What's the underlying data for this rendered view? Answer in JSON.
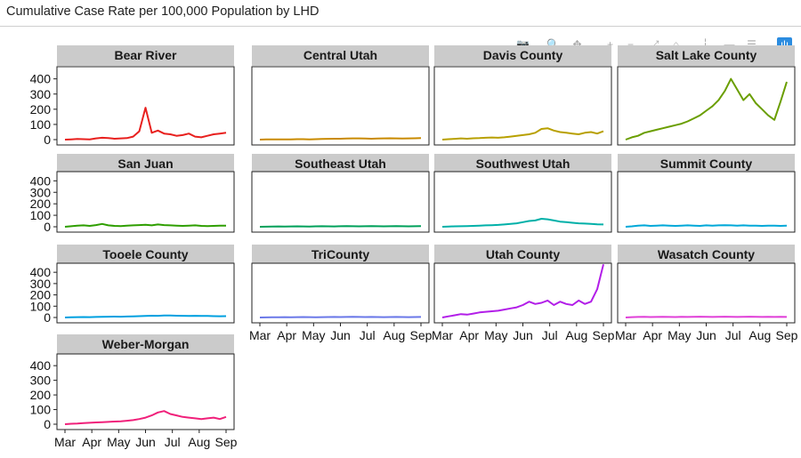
{
  "title": "Cumulative Case Rate per 100,000 Population by LHD",
  "toolbar": [
    {
      "name": "camera-icon",
      "glyph": "📷",
      "active": false
    },
    {
      "name": "zoom-icon",
      "glyph": "🔍",
      "active": false
    },
    {
      "name": "pan-icon",
      "glyph": "✥",
      "active": false
    },
    {
      "name": "zoom-in-icon",
      "glyph": "+",
      "active": false
    },
    {
      "name": "zoom-out-icon",
      "glyph": "−",
      "active": false
    },
    {
      "name": "autoscale-icon",
      "glyph": "⤢",
      "active": false
    },
    {
      "name": "reset-axes-icon",
      "glyph": "⌂",
      "active": false
    },
    {
      "name": "spike-lines-icon",
      "glyph": "┆",
      "active": false
    },
    {
      "name": "hover-closest-icon",
      "glyph": "▬",
      "active": false
    },
    {
      "name": "hover-compare-icon",
      "glyph": "☰",
      "active": false
    },
    {
      "name": "plotly-logo-icon",
      "glyph": "ılı",
      "active": true
    }
  ],
  "chart_data": {
    "type": "line",
    "title": "Cumulative Case Rate per 100,000 Population by LHD",
    "facet_layout": "4 columns",
    "ylim": [
      0,
      480
    ],
    "y_ticks": [
      "0",
      "100",
      "200",
      "300",
      "400"
    ],
    "x_ticks": [
      "Mar",
      "Apr",
      "May",
      "Jun",
      "Jul",
      "Aug",
      "Sep"
    ],
    "x_range": [
      "Mar",
      "Sep"
    ],
    "grid": false,
    "facets": [
      {
        "name": "Bear River",
        "color": "#e8201e",
        "values": [
          0,
          2,
          4,
          3,
          2,
          8,
          12,
          10,
          6,
          8,
          10,
          20,
          55,
          210,
          45,
          60,
          40,
          35,
          25,
          30,
          40,
          20,
          15,
          25,
          35,
          40,
          45
        ]
      },
      {
        "name": "Central Utah",
        "color": "#c98a00",
        "values": [
          0,
          1,
          1,
          2,
          1,
          2,
          3,
          3,
          2,
          3,
          4,
          5,
          6,
          6,
          7,
          8,
          8,
          7,
          6,
          7,
          8,
          9,
          8,
          7,
          8,
          9,
          10
        ]
      },
      {
        "name": "Davis County",
        "color": "#b8a000",
        "values": [
          0,
          3,
          5,
          8,
          6,
          9,
          10,
          12,
          14,
          12,
          15,
          20,
          25,
          30,
          35,
          45,
          70,
          75,
          60,
          50,
          45,
          40,
          35,
          45,
          50,
          40,
          55
        ]
      },
      {
        "name": "Salt Lake County",
        "color": "#6a9e00",
        "values": [
          0,
          15,
          25,
          45,
          55,
          65,
          75,
          85,
          95,
          105,
          120,
          140,
          160,
          190,
          220,
          260,
          320,
          400,
          330,
          260,
          300,
          240,
          200,
          160,
          130,
          250,
          380
        ]
      },
      {
        "name": "San Juan",
        "color": "#2e9e00",
        "values": [
          0,
          5,
          10,
          12,
          8,
          15,
          25,
          12,
          8,
          6,
          10,
          12,
          15,
          18,
          12,
          20,
          15,
          12,
          10,
          8,
          10,
          12,
          8,
          6,
          8,
          10,
          9
        ]
      },
      {
        "name": "Southeast Utah",
        "color": "#00a05a",
        "values": [
          0,
          1,
          2,
          3,
          2,
          3,
          4,
          3,
          2,
          4,
          5,
          4,
          3,
          5,
          6,
          5,
          4,
          5,
          6,
          5,
          4,
          5,
          6,
          5,
          4,
          5,
          6
        ]
      },
      {
        "name": "Southwest Utah",
        "color": "#00b0a8",
        "values": [
          0,
          2,
          4,
          5,
          6,
          8,
          10,
          12,
          14,
          16,
          20,
          25,
          30,
          40,
          50,
          55,
          70,
          65,
          55,
          45,
          40,
          35,
          30,
          28,
          25,
          22,
          20
        ]
      },
      {
        "name": "Summit County",
        "color": "#00a8d8",
        "values": [
          0,
          4,
          10,
          12,
          8,
          10,
          12,
          10,
          8,
          10,
          12,
          10,
          8,
          12,
          10,
          12,
          14,
          12,
          10,
          12,
          10,
          9,
          8,
          10,
          9,
          8,
          9
        ]
      },
      {
        "name": "Tooele County",
        "color": "#00a0e0",
        "values": [
          0,
          2,
          3,
          4,
          3,
          5,
          6,
          7,
          8,
          7,
          9,
          10,
          12,
          14,
          16,
          15,
          18,
          17,
          16,
          15,
          14,
          15,
          14,
          13,
          12,
          11,
          12
        ]
      },
      {
        "name": "TriCounty",
        "color": "#6a78e8",
        "values": [
          0,
          1,
          2,
          2,
          3,
          2,
          3,
          4,
          3,
          2,
          3,
          4,
          5,
          4,
          5,
          6,
          5,
          4,
          5,
          4,
          3,
          4,
          5,
          4,
          3,
          4,
          5
        ]
      },
      {
        "name": "Utah County",
        "color": "#b21ee8",
        "values": [
          0,
          10,
          20,
          30,
          25,
          35,
          45,
          50,
          55,
          60,
          70,
          80,
          90,
          110,
          140,
          120,
          130,
          150,
          110,
          140,
          120,
          110,
          150,
          120,
          140,
          250,
          470
        ]
      },
      {
        "name": "Wasatch County",
        "color": "#e040d8",
        "values": [
          0,
          3,
          5,
          6,
          4,
          5,
          6,
          5,
          4,
          6,
          5,
          6,
          7,
          6,
          5,
          6,
          7,
          6,
          5,
          6,
          7,
          6,
          5,
          6,
          5,
          6,
          5
        ]
      },
      {
        "name": "Weber-Morgan",
        "color": "#f0207a",
        "values": [
          0,
          3,
          5,
          8,
          10,
          12,
          14,
          16,
          18,
          20,
          24,
          28,
          35,
          45,
          60,
          80,
          90,
          70,
          60,
          50,
          45,
          40,
          35,
          40,
          45,
          35,
          50
        ]
      }
    ]
  }
}
